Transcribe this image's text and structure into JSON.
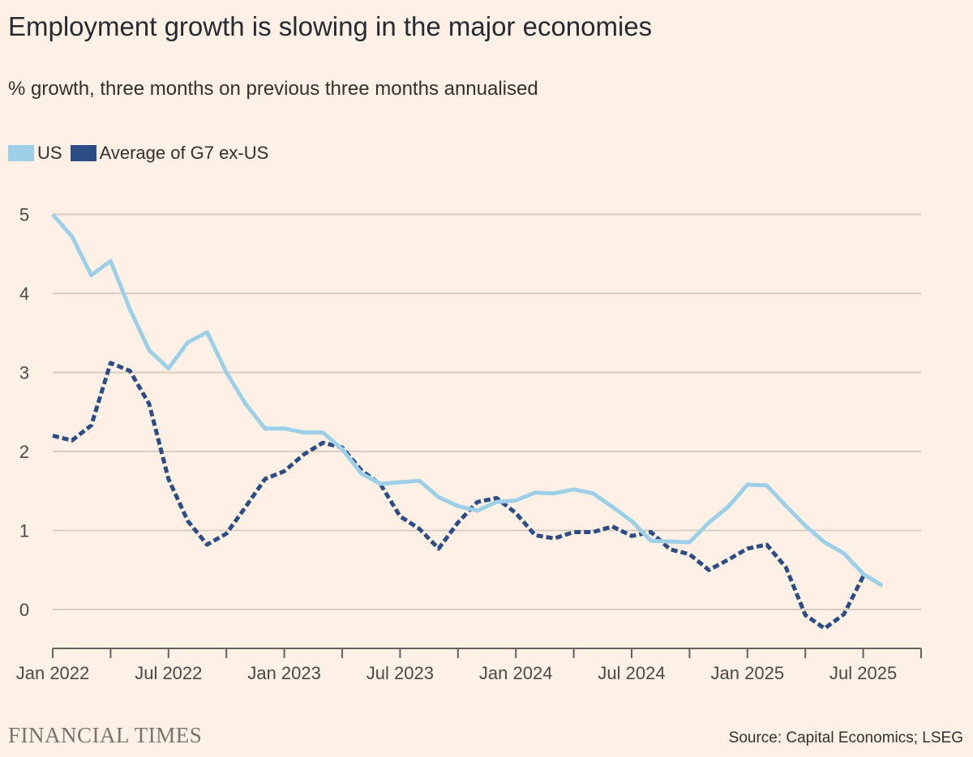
{
  "title": "Employment growth is slowing in the major economies",
  "subtitle": "% growth, three months on previous three months annualised",
  "source": "Source: Capital Economics; LSEG",
  "logo_text": "FINANCIAL TIMES",
  "chart_data": {
    "type": "line",
    "title": "Employment growth is slowing in the major economies",
    "subtitle": "% growth, three months on previous three months annualised",
    "ylim": [
      -0.5,
      5
    ],
    "yticks": [
      0,
      1,
      2,
      3,
      4,
      5
    ],
    "x_start": "2022-01",
    "x_end": "2025-10",
    "x_ticks": [
      {
        "date": "2022-01",
        "label": "Jan 2022"
      },
      {
        "date": "2022-07",
        "label": "Jul 2022"
      },
      {
        "date": "2023-01",
        "label": "Jan 2023"
      },
      {
        "date": "2023-07",
        "label": "Jul 2023"
      },
      {
        "date": "2024-01",
        "label": "Jan 2024"
      },
      {
        "date": "2024-07",
        "label": "Jul 2024"
      },
      {
        "date": "2025-01",
        "label": "Jan 2025"
      },
      {
        "date": "2025-07",
        "label": "Jul 2025"
      }
    ],
    "grid": true,
    "legend_position": "top-left",
    "x": [
      "2022-01",
      "2022-02",
      "2022-03",
      "2022-04",
      "2022-05",
      "2022-06",
      "2022-07",
      "2022-08",
      "2022-09",
      "2022-10",
      "2022-11",
      "2022-12",
      "2023-01",
      "2023-02",
      "2023-03",
      "2023-04",
      "2023-05",
      "2023-06",
      "2023-07",
      "2023-08",
      "2023-09",
      "2023-10",
      "2023-11",
      "2023-12",
      "2024-01",
      "2024-02",
      "2024-03",
      "2024-04",
      "2024-05",
      "2024-06",
      "2024-07",
      "2024-08",
      "2024-09",
      "2024-10",
      "2024-11",
      "2024-12",
      "2025-01",
      "2025-02",
      "2025-03",
      "2025-04",
      "2025-05",
      "2025-06",
      "2025-07",
      "2025-08"
    ],
    "series": [
      {
        "name": "US",
        "color": "#9dd0e8",
        "style": "solid",
        "values": [
          5.0,
          4.72,
          4.23,
          4.41,
          3.8,
          3.28,
          3.05,
          3.38,
          3.51,
          3.0,
          2.6,
          2.29,
          2.29,
          2.24,
          2.24,
          2.03,
          1.72,
          1.59,
          1.61,
          1.63,
          1.42,
          1.31,
          1.25,
          1.36,
          1.38,
          1.48,
          1.47,
          1.52,
          1.47,
          1.3,
          1.12,
          0.87,
          0.86,
          0.85,
          1.1,
          1.3,
          1.58,
          1.57,
          1.31,
          1.06,
          0.85,
          0.71,
          0.45,
          0.3
        ]
      },
      {
        "name": "Average of G7 ex-US",
        "color": "#2b4c84",
        "style": "dashed",
        "values": [
          2.2,
          2.14,
          2.33,
          3.12,
          3.02,
          2.6,
          1.65,
          1.12,
          0.82,
          0.96,
          1.3,
          1.65,
          1.75,
          1.96,
          2.11,
          2.05,
          1.76,
          1.58,
          1.18,
          1.02,
          0.77,
          1.1,
          1.36,
          1.41,
          1.22,
          0.94,
          0.9,
          0.98,
          0.98,
          1.05,
          0.93,
          0.98,
          0.76,
          0.7,
          0.5,
          0.63,
          0.77,
          0.82,
          0.53,
          -0.07,
          -0.24,
          -0.06,
          0.42,
          null
        ]
      }
    ]
  }
}
